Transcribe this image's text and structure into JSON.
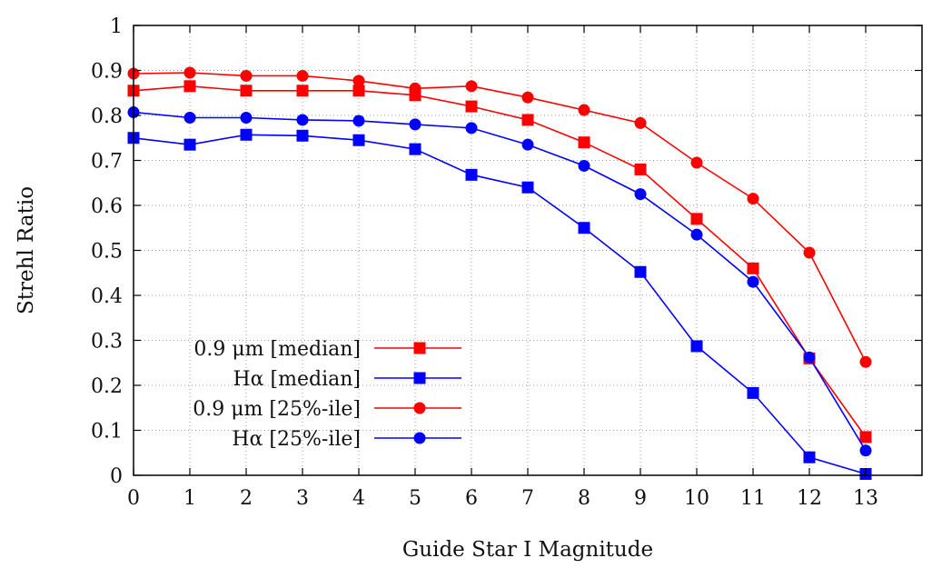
{
  "chart_data": {
    "type": "line",
    "xlabel": "Guide Star I Magnitude",
    "ylabel": "Strehl Ratio",
    "xlim": [
      0,
      14
    ],
    "ylim": [
      0,
      1
    ],
    "x_ticks": [
      "0",
      "1",
      "2",
      "3",
      "4",
      "5",
      "6",
      "7",
      "8",
      "9",
      "10",
      "11",
      "12",
      "13"
    ],
    "y_ticks": [
      "0",
      "0.1",
      "0.2",
      "0.3",
      "0.4",
      "0.5",
      "0.6",
      "0.7",
      "0.8",
      "0.9",
      "1"
    ],
    "grid": true,
    "legend_position": "bottom-left",
    "series": [
      {
        "name": "0.9 μm [median]",
        "color": "#ff0000",
        "marker": "square",
        "x": [
          0,
          1,
          2,
          3,
          4,
          5,
          6,
          7,
          8,
          9,
          10,
          11,
          12,
          13
        ],
        "values": [
          0.855,
          0.865,
          0.855,
          0.855,
          0.855,
          0.845,
          0.82,
          0.79,
          0.74,
          0.68,
          0.57,
          0.46,
          0.26,
          0.085
        ]
      },
      {
        "name": "Hα [median]",
        "color": "#0000ff",
        "marker": "square",
        "x": [
          0,
          1,
          2,
          3,
          4,
          5,
          6,
          7,
          8,
          9,
          10,
          11,
          12,
          13
        ],
        "values": [
          0.75,
          0.735,
          0.757,
          0.755,
          0.745,
          0.725,
          0.668,
          0.64,
          0.55,
          0.452,
          0.287,
          0.183,
          0.04,
          0.003
        ]
      },
      {
        "name": "0.9 μm [25%-ile]",
        "color": "#ff0000",
        "marker": "circle",
        "x": [
          0,
          1,
          2,
          3,
          4,
          5,
          6,
          7,
          8,
          9,
          10,
          11,
          12,
          13
        ],
        "values": [
          0.893,
          0.895,
          0.888,
          0.888,
          0.877,
          0.86,
          0.865,
          0.84,
          0.812,
          0.783,
          0.695,
          0.615,
          0.495,
          0.252
        ]
      },
      {
        "name": "Hα [25%-ile]",
        "color": "#0000ff",
        "marker": "circle",
        "x": [
          0,
          1,
          2,
          3,
          4,
          5,
          6,
          7,
          8,
          9,
          10,
          11,
          12,
          13
        ],
        "values": [
          0.807,
          0.795,
          0.795,
          0.79,
          0.788,
          0.78,
          0.772,
          0.735,
          0.688,
          0.625,
          0.535,
          0.43,
          0.262,
          0.055
        ]
      }
    ]
  }
}
